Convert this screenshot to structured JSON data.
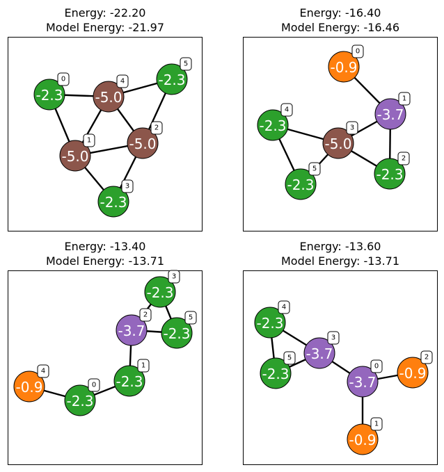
{
  "colors": {
    "green": "#2ca02c",
    "brown": "#8c564b",
    "purple": "#9467bd",
    "orange": "#ff7f0e"
  },
  "panels": [
    {
      "title_line1": "Energy: -22.20",
      "title_line2": "Model Energy: -21.97",
      "nodes": [
        {
          "id": "0",
          "energy": "-2.3",
          "color": "green"
        },
        {
          "id": "1",
          "energy": "-5.0",
          "color": "brown"
        },
        {
          "id": "2",
          "energy": "-5.0",
          "color": "brown"
        },
        {
          "id": "3",
          "energy": "-2.3",
          "color": "green"
        },
        {
          "id": "4",
          "energy": "-5.0",
          "color": "brown"
        },
        {
          "id": "5",
          "energy": "-2.3",
          "color": "green"
        }
      ],
      "edges": [
        [
          "0",
          "4"
        ],
        [
          "0",
          "1"
        ],
        [
          "4",
          "5"
        ],
        [
          "4",
          "1"
        ],
        [
          "4",
          "2"
        ],
        [
          "1",
          "2"
        ],
        [
          "1",
          "3"
        ],
        [
          "2",
          "3"
        ],
        [
          "2",
          "5"
        ]
      ]
    },
    {
      "title_line1": "Energy: -16.40",
      "title_line2": "Model Energy: -16.46",
      "nodes": [
        {
          "id": "0",
          "energy": "-0.9",
          "color": "orange"
        },
        {
          "id": "1",
          "energy": "-3.7",
          "color": "purple"
        },
        {
          "id": "2",
          "energy": "-2.3",
          "color": "green"
        },
        {
          "id": "3",
          "energy": "-5.0",
          "color": "brown"
        },
        {
          "id": "4",
          "energy": "-2.3",
          "color": "green"
        },
        {
          "id": "5",
          "energy": "-2.3",
          "color": "green"
        }
      ],
      "edges": [
        [
          "0",
          "1"
        ],
        [
          "1",
          "3"
        ],
        [
          "1",
          "2"
        ],
        [
          "3",
          "2"
        ],
        [
          "3",
          "4"
        ],
        [
          "3",
          "5"
        ],
        [
          "4",
          "5"
        ]
      ]
    },
    {
      "title_line1": "Energy: -13.40",
      "title_line2": "Model Energy: -13.71",
      "nodes": [
        {
          "id": "0",
          "energy": "-2.3",
          "color": "green"
        },
        {
          "id": "1",
          "energy": "-2.3",
          "color": "green"
        },
        {
          "id": "2",
          "energy": "-3.7",
          "color": "purple"
        },
        {
          "id": "3",
          "energy": "-2.3",
          "color": "green"
        },
        {
          "id": "4",
          "energy": "-0.9",
          "color": "orange"
        },
        {
          "id": "5",
          "energy": "-2.3",
          "color": "green"
        }
      ],
      "edges": [
        [
          "4",
          "0"
        ],
        [
          "0",
          "1"
        ],
        [
          "1",
          "2"
        ],
        [
          "2",
          "3"
        ],
        [
          "2",
          "5"
        ],
        [
          "3",
          "5"
        ]
      ]
    },
    {
      "title_line1": "Energy: -13.60",
      "title_line2": "Model Energy: -13.71",
      "nodes": [
        {
          "id": "0",
          "energy": "-3.7",
          "color": "purple"
        },
        {
          "id": "1",
          "energy": "-0.9",
          "color": "orange"
        },
        {
          "id": "2",
          "energy": "-0.9",
          "color": "orange"
        },
        {
          "id": "3",
          "energy": "-3.7",
          "color": "purple"
        },
        {
          "id": "4",
          "energy": "-2.3",
          "color": "green"
        },
        {
          "id": "5",
          "energy": "-2.3",
          "color": "green"
        }
      ],
      "edges": [
        [
          "4",
          "3"
        ],
        [
          "4",
          "5"
        ],
        [
          "5",
          "3"
        ],
        [
          "3",
          "0"
        ],
        [
          "0",
          "2"
        ],
        [
          "0",
          "1"
        ]
      ]
    }
  ]
}
